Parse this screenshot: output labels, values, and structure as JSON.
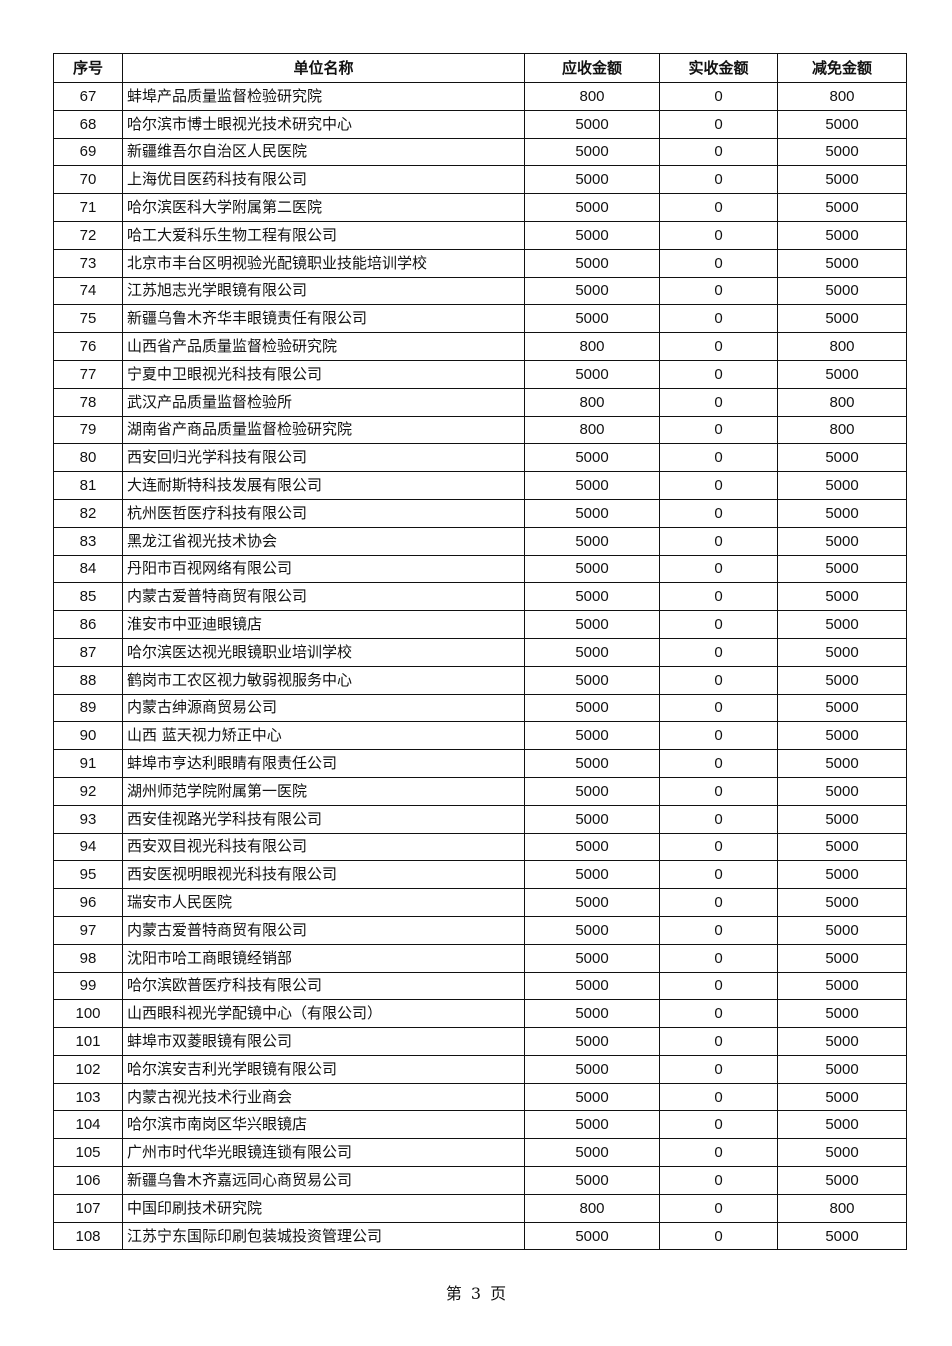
{
  "table": {
    "headers": [
      "序号",
      "单位名称",
      "应收金额",
      "实收金额",
      "减免金额"
    ],
    "rows": [
      [
        "67",
        "蚌埠产品质量监督检验研究院",
        "800",
        "0",
        "800"
      ],
      [
        "68",
        "哈尔滨市博士眼视光技术研究中心",
        "5000",
        "0",
        "5000"
      ],
      [
        "69",
        "新疆维吾尔自治区人民医院",
        "5000",
        "0",
        "5000"
      ],
      [
        "70",
        "上海优目医药科技有限公司",
        "5000",
        "0",
        "5000"
      ],
      [
        "71",
        "哈尔滨医科大学附属第二医院",
        "5000",
        "0",
        "5000"
      ],
      [
        "72",
        "哈工大爱科乐生物工程有限公司",
        "5000",
        "0",
        "5000"
      ],
      [
        "73",
        "北京市丰台区明视验光配镜职业技能培训学校",
        "5000",
        "0",
        "5000"
      ],
      [
        "74",
        "江苏旭志光学眼镜有限公司",
        "5000",
        "0",
        "5000"
      ],
      [
        "75",
        "新疆乌鲁木齐华丰眼镜责任有限公司",
        "5000",
        "0",
        "5000"
      ],
      [
        "76",
        "山西省产品质量监督检验研究院",
        "800",
        "0",
        "800"
      ],
      [
        "77",
        "宁夏中卫眼视光科技有限公司",
        "5000",
        "0",
        "5000"
      ],
      [
        "78",
        "武汉产品质量监督检验所",
        "800",
        "0",
        "800"
      ],
      [
        "79",
        "湖南省产商品质量监督检验研究院",
        "800",
        "0",
        "800"
      ],
      [
        "80",
        "西安回归光学科技有限公司",
        "5000",
        "0",
        "5000"
      ],
      [
        "81",
        "大连耐斯特科技发展有限公司",
        "5000",
        "0",
        "5000"
      ],
      [
        "82",
        "杭州医哲医疗科技有限公司",
        "5000",
        "0",
        "5000"
      ],
      [
        "83",
        "黑龙江省视光技术协会",
        "5000",
        "0",
        "5000"
      ],
      [
        "84",
        "丹阳市百视网络有限公司",
        "5000",
        "0",
        "5000"
      ],
      [
        "85",
        "内蒙古爱普特商贸有限公司",
        "5000",
        "0",
        "5000"
      ],
      [
        "86",
        "淮安市中亚迪眼镜店",
        "5000",
        "0",
        "5000"
      ],
      [
        "87",
        "哈尔滨医达视光眼镜职业培训学校",
        "5000",
        "0",
        "5000"
      ],
      [
        "88",
        "鹤岗市工农区视力敏弱视服务中心",
        "5000",
        "0",
        "5000"
      ],
      [
        "89",
        "内蒙古绅源商贸易公司",
        "5000",
        "0",
        "5000"
      ],
      [
        "90",
        "山西 蓝天视力矫正中心",
        "5000",
        "0",
        "5000"
      ],
      [
        "91",
        "蚌埠市亨达利眼睛有限责任公司",
        "5000",
        "0",
        "5000"
      ],
      [
        "92",
        "湖州师范学院附属第一医院",
        "5000",
        "0",
        "5000"
      ],
      [
        "93",
        "西安佳视路光学科技有限公司",
        "5000",
        "0",
        "5000"
      ],
      [
        "94",
        "西安双目视光科技有限公司",
        "5000",
        "0",
        "5000"
      ],
      [
        "95",
        "西安医视明眼视光科技有限公司",
        "5000",
        "0",
        "5000"
      ],
      [
        "96",
        "瑞安市人民医院",
        "5000",
        "0",
        "5000"
      ],
      [
        "97",
        "内蒙古爱普特商贸有限公司",
        "5000",
        "0",
        "5000"
      ],
      [
        "98",
        "沈阳市哈工商眼镜经销部",
        "5000",
        "0",
        "5000"
      ],
      [
        "99",
        "哈尔滨欧普医疗科技有限公司",
        "5000",
        "0",
        "5000"
      ],
      [
        "100",
        "山西眼科视光学配镜中心（有限公司）",
        "5000",
        "0",
        "5000"
      ],
      [
        "101",
        "蚌埠市双菱眼镜有限公司",
        "5000",
        "0",
        "5000"
      ],
      [
        "102",
        "哈尔滨安吉利光学眼镜有限公司",
        "5000",
        "0",
        "5000"
      ],
      [
        "103",
        "内蒙古视光技术行业商会",
        "5000",
        "0",
        "5000"
      ],
      [
        "104",
        "哈尔滨市南岗区华兴眼镜店",
        "5000",
        "0",
        "5000"
      ],
      [
        "105",
        "广州市时代华光眼镜连锁有限公司",
        "5000",
        "0",
        "5000"
      ],
      [
        "106",
        "新疆乌鲁木齐嘉远同心商贸易公司",
        "5000",
        "0",
        "5000"
      ],
      [
        "107",
        "中国印刷技术研究院",
        "800",
        "0",
        "800"
      ],
      [
        "108",
        "江苏宁东国际印刷包装城投资管理公司",
        "5000",
        "0",
        "5000"
      ]
    ]
  },
  "footer": {
    "page_label": "第 3 页"
  }
}
